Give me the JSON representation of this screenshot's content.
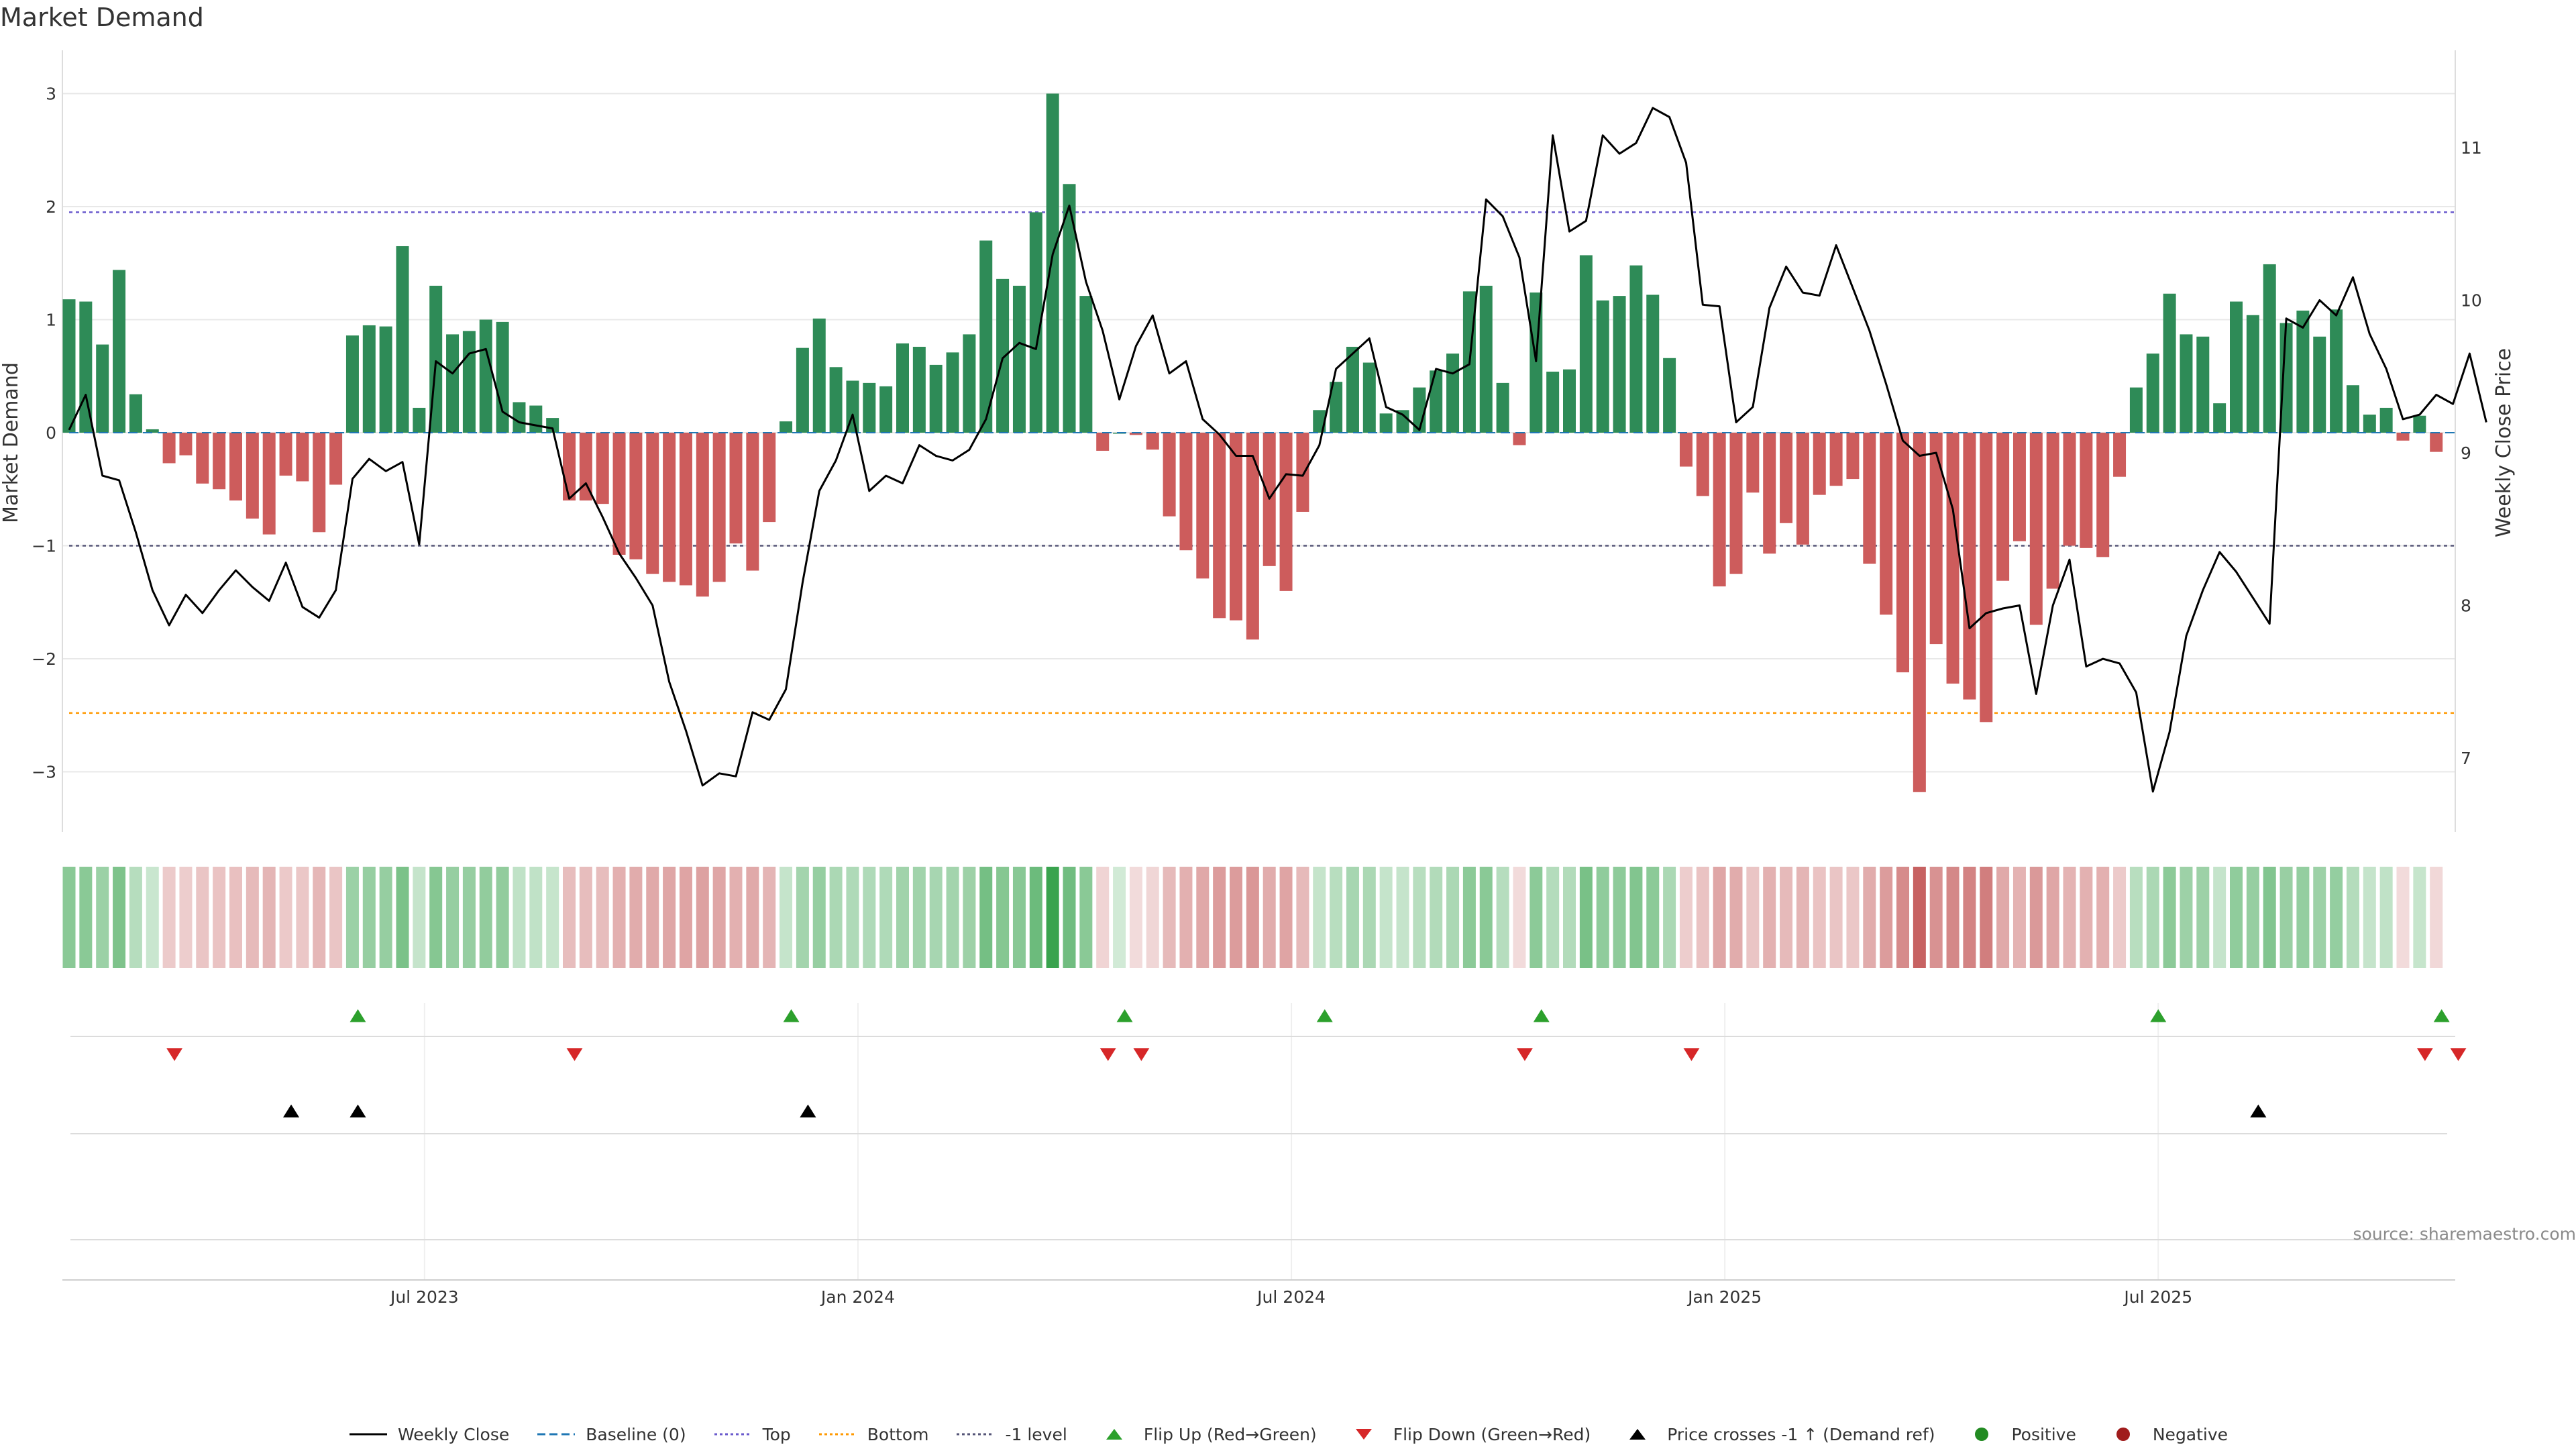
{
  "title": "Market Demand",
  "source": "source: sharemaestro.com",
  "colors": {
    "positive": "#2e8b57",
    "negative": "#cd5c5c",
    "price": "#000000",
    "top": "#6a5acd",
    "bottom": "#ff9900",
    "minus1": "#555577",
    "baseline": "#1f77b4",
    "flipUp": "#2ca02c",
    "flipDown": "#d62728",
    "cross": "#000000",
    "grid": "#e8e8e8",
    "heat_pos": "#2e9e44",
    "heat_neg": "#c45a5a",
    "legend_positive": "#228b22",
    "legend_negative": "#a01c1c"
  },
  "chart_data": {
    "type": "bar",
    "title": "Market Demand",
    "ylabel": "Market Demand",
    "y2label": "Weekly Close Price",
    "ylim": [
      -3.5,
      3.2
    ],
    "y2lim": [
      6.55,
      11.65
    ],
    "yticks": [
      3,
      2,
      1,
      0,
      -1,
      -2,
      -3
    ],
    "yticklabels": [
      "3",
      "2",
      "1",
      "0",
      "−1",
      "−2",
      "−3"
    ],
    "y2ticks": [
      11,
      10,
      9,
      8,
      7
    ],
    "y2ticklabels": [
      "11",
      "10",
      "9",
      "8",
      "7"
    ],
    "xticklabels": [
      "Jul 2023",
      "Jan 2024",
      "Jul 2024",
      "Jan 2025",
      "Jul 2025"
    ],
    "xtick_weeks": [
      21,
      47,
      73,
      99,
      125
    ],
    "levels": {
      "top": 1.95,
      "bottom": -2.48,
      "minus1": -1.0,
      "baseline": 0
    },
    "demand": [
      1.18,
      1.16,
      0.78,
      1.44,
      0.34,
      0.03,
      -0.27,
      -0.2,
      -0.45,
      -0.5,
      -0.6,
      -0.76,
      -0.9,
      -0.38,
      -0.43,
      -0.88,
      -0.46,
      0.86,
      0.95,
      0.94,
      1.65,
      0.22,
      1.3,
      0.87,
      0.9,
      1.0,
      0.98,
      0.27,
      0.24,
      0.13,
      -0.6,
      -0.6,
      -0.63,
      -1.08,
      -1.12,
      -1.25,
      -1.32,
      -1.35,
      -1.45,
      -1.32,
      -0.98,
      -1.22,
      -0.79,
      0.1,
      0.75,
      1.01,
      0.58,
      0.46,
      0.44,
      0.41,
      0.79,
      0.76,
      0.6,
      0.71,
      0.87,
      1.7,
      1.36,
      1.3,
      1.95,
      3.0,
      2.2,
      1.21,
      -0.16,
      0.0,
      -0.02,
      -0.15,
      -0.74,
      -1.04,
      -1.29,
      -1.64,
      -1.66,
      -1.83,
      -1.18,
      -1.4,
      -0.7,
      0.2,
      0.45,
      0.76,
      0.62,
      0.17,
      0.2,
      0.4,
      0.55,
      0.7,
      1.25,
      1.3,
      0.44,
      -0.11,
      1.24,
      0.54,
      0.56,
      1.57,
      1.17,
      1.21,
      1.48,
      1.22,
      0.66,
      -0.3,
      -0.56,
      -1.36,
      -1.25,
      -0.53,
      -1.07,
      -0.8,
      -0.99,
      -0.55,
      -0.47,
      -0.41,
      -1.16,
      -1.61,
      -2.12,
      -3.18,
      -1.87,
      -2.22,
      -2.36,
      -2.56,
      -1.31,
      -0.96,
      -1.7,
      -1.38,
      -1.0,
      -1.02,
      -1.1,
      -0.39,
      0.4,
      0.7,
      1.23,
      0.87,
      0.85,
      0.26,
      1.16,
      1.04,
      1.49,
      0.97,
      1.08,
      0.85,
      1.09,
      0.42,
      0.16,
      0.22,
      -0.07,
      0.15,
      -0.17
    ],
    "price": [
      9.15,
      9.38,
      8.85,
      8.82,
      8.48,
      8.1,
      7.87,
      8.07,
      7.95,
      8.1,
      8.23,
      8.12,
      8.03,
      8.28,
      7.99,
      7.92,
      8.1,
      8.83,
      8.96,
      8.88,
      8.94,
      8.4,
      9.6,
      9.52,
      9.65,
      9.68,
      9.27,
      9.2,
      9.18,
      9.16,
      8.7,
      8.8,
      8.58,
      8.34,
      8.18,
      8.0,
      7.5,
      7.18,
      6.82,
      6.9,
      6.88,
      7.3,
      7.25,
      7.45,
      8.15,
      8.75,
      8.95,
      9.25,
      8.75,
      8.85,
      8.8,
      9.05,
      8.98,
      8.95,
      9.02,
      9.22,
      9.62,
      9.72,
      9.68,
      10.3,
      10.62,
      10.12,
      9.8,
      9.35,
      9.7,
      9.9,
      9.52,
      9.6,
      9.22,
      9.12,
      8.98,
      8.98,
      8.7,
      8.86,
      8.85,
      9.05,
      9.55,
      9.65,
      9.75,
      9.3,
      9.25,
      9.15,
      9.55,
      9.52,
      9.58,
      10.66,
      10.55,
      10.28,
      9.6,
      11.08,
      10.45,
      10.52,
      11.08,
      10.96,
      11.03,
      11.26,
      11.2,
      10.9,
      9.97,
      9.96,
      9.2,
      9.3,
      9.95,
      10.22,
      10.05,
      10.03,
      10.36,
      10.08,
      9.8,
      9.45,
      9.08,
      8.98,
      9.0,
      8.63,
      7.85,
      7.95,
      7.98,
      8.0,
      7.42,
      8.0,
      8.3,
      7.6,
      7.65,
      7.62,
      7.43,
      6.78,
      7.17,
      7.8,
      8.1,
      8.35,
      8.22,
      8.05,
      7.88,
      9.88,
      9.82,
      10.0,
      9.9,
      10.15,
      9.78,
      9.55,
      9.22,
      9.25,
      9.38,
      9.32,
      9.65,
      9.2
    ],
    "heat": [
      0.56,
      0.56,
      0.48,
      0.62,
      0.35,
      0.26,
      0.32,
      0.3,
      0.35,
      0.36,
      0.38,
      0.42,
      0.45,
      0.33,
      0.34,
      0.44,
      0.35,
      0.48,
      0.5,
      0.5,
      0.63,
      0.28,
      0.58,
      0.5,
      0.5,
      0.52,
      0.52,
      0.3,
      0.3,
      0.27,
      0.4,
      0.4,
      0.4,
      0.48,
      0.5,
      0.52,
      0.54,
      0.55,
      0.57,
      0.54,
      0.48,
      0.52,
      0.45,
      0.28,
      0.44,
      0.5,
      0.4,
      0.38,
      0.38,
      0.38,
      0.45,
      0.45,
      0.42,
      0.44,
      0.47,
      0.66,
      0.58,
      0.57,
      0.7,
      0.95,
      0.68,
      0.56,
      0.26,
      0.22,
      0.22,
      0.25,
      0.42,
      0.48,
      0.53,
      0.6,
      0.6,
      0.63,
      0.5,
      0.55,
      0.42,
      0.28,
      0.34,
      0.42,
      0.4,
      0.28,
      0.28,
      0.34,
      0.37,
      0.4,
      0.55,
      0.56,
      0.35,
      0.22,
      0.55,
      0.36,
      0.37,
      0.64,
      0.53,
      0.54,
      0.6,
      0.55,
      0.4,
      0.3,
      0.36,
      0.54,
      0.5,
      0.35,
      0.47,
      0.42,
      0.45,
      0.36,
      0.35,
      0.34,
      0.5,
      0.6,
      0.7,
      0.95,
      0.66,
      0.72,
      0.75,
      0.78,
      0.52,
      0.46,
      0.62,
      0.54,
      0.46,
      0.47,
      0.48,
      0.32,
      0.34,
      0.4,
      0.55,
      0.47,
      0.47,
      0.28,
      0.53,
      0.5,
      0.6,
      0.49,
      0.51,
      0.47,
      0.51,
      0.36,
      0.28,
      0.3,
      0.22,
      0.27,
      0.24
    ],
    "flip_up_weeks": [
      17,
      43,
      63,
      75,
      88,
      125,
      142
    ],
    "flip_down_weeks": [
      6,
      30,
      62,
      64,
      87,
      97,
      141,
      143
    ],
    "cross_weeks": [
      13,
      17,
      44,
      131
    ],
    "legend": [
      {
        "label": "Weekly Close",
        "marker": "line-solid",
        "color": "#000000"
      },
      {
        "label": "Baseline (0)",
        "marker": "line-dashed",
        "color": "#1f77b4"
      },
      {
        "label": "Top",
        "marker": "line-dotted",
        "color": "#6a5acd"
      },
      {
        "label": "Bottom",
        "marker": "line-dotted",
        "color": "#ff9900"
      },
      {
        "label": "-1 level",
        "marker": "line-dotted",
        "color": "#555577"
      },
      {
        "label": "Flip Up (Red→Green)",
        "marker": "triangle-up",
        "color": "#2ca02c"
      },
      {
        "label": "Flip Down (Green→Red)",
        "marker": "triangle-down",
        "color": "#d62728"
      },
      {
        "label": "Price crosses -1 ↑ (Demand ref)",
        "marker": "triangle-up",
        "color": "#000000"
      },
      {
        "label": "Positive",
        "marker": "circle",
        "color": "#228b22"
      },
      {
        "label": "Negative",
        "marker": "circle",
        "color": "#a01c1c"
      }
    ]
  }
}
